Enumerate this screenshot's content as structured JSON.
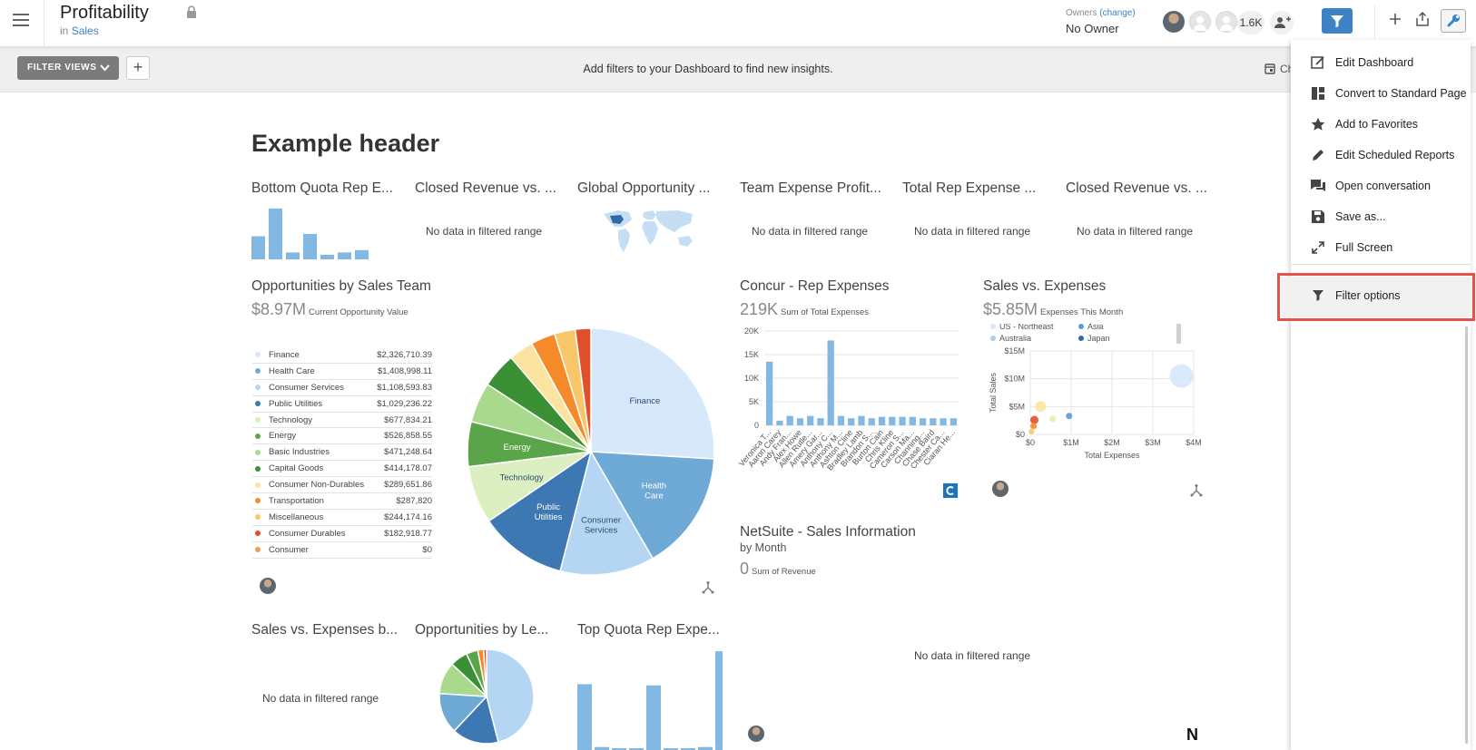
{
  "header": {
    "title": "Profitability",
    "subtitle_prefix": "in",
    "subtitle_link": "Sales",
    "owners_label": "Owners",
    "owners_change": "(change)",
    "owner_value": "No Owner",
    "follower_count": "1.6K"
  },
  "filterbar": {
    "filter_views_label": "FILTER VIEWS",
    "message": "Add filters to your Dashboard to find new insights.",
    "cal_label": "Ch"
  },
  "dashboard": {
    "header": "Example header",
    "row1": [
      {
        "title": "Bottom Quota Rep E...",
        "nodata": ""
      },
      {
        "title": "Closed Revenue vs. ...",
        "nodata": "No data in filtered range"
      },
      {
        "title": "Global Opportunity ...",
        "nodata": ""
      },
      {
        "title": "Team Expense Profit...",
        "nodata": "No data in filtered range"
      },
      {
        "title": "Total Rep Expense ...",
        "nodata": "No data in filtered range"
      },
      {
        "title": "Closed Revenue vs. ...",
        "nodata": "No data in filtered range"
      }
    ],
    "opportunities": {
      "title": "Opportunities by Sales Team",
      "value": "$8.97M",
      "value_label": "Current Opportunity Value"
    },
    "concur": {
      "title": "Concur - Rep Expenses",
      "value": "219K",
      "value_label": "Sum of Total Expenses"
    },
    "sales_expenses": {
      "title": "Sales vs. Expenses",
      "value": "$5.85M",
      "value_label": "Expenses This Month"
    },
    "netsuite": {
      "title": "NetSuite - Sales Information",
      "subtitle": "by Month",
      "value": "0",
      "value_label": "Sum of Revenue",
      "logo": "N"
    },
    "row3": [
      {
        "title": "Sales vs. Expenses b...",
        "nodata": "No data in filtered range"
      },
      {
        "title": "Opportunities by Le...",
        "nodata": ""
      },
      {
        "title": "Top Quota Rep Expe...",
        "nodata": ""
      },
      {
        "title": "",
        "nodata": "No data in filtered range"
      }
    ]
  },
  "chart_data": [
    {
      "type": "pie",
      "title": "Opportunities by Sales Team",
      "categories": [
        "Finance",
        "Health Care",
        "Consumer Services",
        "Public Utilities",
        "Technology",
        "Energy",
        "Basic Industries",
        "Capital Goods",
        "Consumer Non-Durables",
        "Transportation",
        "Miscellaneous",
        "Consumer Durables",
        "Consumer"
      ],
      "values": [
        2326710.39,
        1408998.11,
        1108593.83,
        1029236.22,
        677834.21,
        526858.55,
        471248.64,
        414178.07,
        289651.86,
        287820,
        244174.16,
        182918.77,
        0
      ],
      "value_labels": [
        "$2,326,710.39",
        "$1,408,998.11",
        "$1,108,593.83",
        "$1,029,236.22",
        "$677,834.21",
        "$526,858.55",
        "$471,248.64",
        "$414,178.07",
        "$289,651.86",
        "$287,820",
        "$244,174.16",
        "$182,918.77",
        "$0"
      ],
      "slice_labels": [
        "Finance",
        "Health Care",
        "Consumer Services",
        "Public Utilities",
        "Technology",
        "Energy",
        "",
        "",
        "",
        "",
        "",
        "",
        ""
      ],
      "colors": [
        "#d6e8fa",
        "#6fa9d6",
        "#b5d6f3",
        "#3d78b3",
        "#dcefc0",
        "#5aa54a",
        "#a9d98c",
        "#3b8f35",
        "#fbe3a0",
        "#f6892a",
        "#f8c76a",
        "#e0502a",
        "#f59a50"
      ]
    },
    {
      "type": "bar",
      "title": "Concur - Rep Expenses",
      "categories": [
        "Veronica T...",
        "Aaron Carey",
        "Andy Fran...",
        "Alex Howe",
        "Allen Rutle...",
        "Amery Gar...",
        "Anthony C...",
        "Anthony M...",
        "Ashton Cline",
        "Bradley Lamb",
        "Brandon S...",
        "Burton Cain",
        "Chris Kline",
        "Cameron S...",
        "Carson Ma...",
        "Channing...",
        "Chase Baird",
        "Chester Ca...",
        "Ciaran He..."
      ],
      "values": [
        13500,
        1000,
        2000,
        1500,
        2000,
        1500,
        18000,
        2000,
        1500,
        2000,
        1500,
        1800,
        1800,
        1800,
        1800,
        1500,
        1500,
        1500,
        1500
      ],
      "ylim": [
        0,
        20000
      ],
      "ytick_labels": [
        "0",
        "5K",
        "10K",
        "15K",
        "20K"
      ],
      "color": "#82b8e2"
    },
    {
      "type": "scatter",
      "title": "Sales vs. Expenses",
      "xlabel": "Total Expenses",
      "ylabel": "Total Sales",
      "xtick_labels": [
        "$0",
        "$1M",
        "$2M",
        "$3M",
        "$4M"
      ],
      "ytick_labels": [
        "$0",
        "$5M",
        "$10M",
        "$15M"
      ],
      "xlim": [
        0,
        4000000
      ],
      "ylim": [
        0,
        15000000
      ],
      "legend": [
        "US - Northeast",
        "Asia",
        "Australia",
        "Japan"
      ],
      "legend_colors": [
        "#d6e8fa",
        "#5b9bd1",
        "#a9cfee",
        "#2f6aa8"
      ],
      "points": [
        {
          "x": 3700000,
          "y": 10500000,
          "size": 26,
          "color": "#d6e8fa"
        },
        {
          "x": 250000,
          "y": 5000000,
          "size": 12,
          "color": "#fde59d"
        },
        {
          "x": 950000,
          "y": 3300000,
          "size": 7,
          "color": "#5b9bd1"
        },
        {
          "x": 550000,
          "y": 2800000,
          "size": 7,
          "color": "#e5efa6"
        },
        {
          "x": 100000,
          "y": 2600000,
          "size": 9,
          "color": "#e0502a"
        },
        {
          "x": 80000,
          "y": 1500000,
          "size": 7,
          "color": "#f6892a"
        },
        {
          "x": 30000,
          "y": 500000,
          "size": 6,
          "color": "#f8c76a"
        }
      ]
    },
    {
      "type": "bar",
      "title": "Bottom Quota Rep E...",
      "values": [
        10,
        22,
        3,
        11,
        2,
        3,
        4
      ],
      "color": "#82b8e2"
    },
    {
      "type": "pie",
      "title": "Opportunities by Le...",
      "values": [
        46,
        16,
        14,
        11,
        6,
        4,
        2,
        1
      ],
      "colors": [
        "#b5d6f3",
        "#3d78b3",
        "#6fa9d6",
        "#a9d98c",
        "#3b8f35",
        "#5aa54a",
        "#f6892a",
        "#e0502a"
      ]
    },
    {
      "type": "bar",
      "title": "Top Quota Rep Expe...",
      "values": [
        11,
        0.5,
        0.3,
        0.3,
        10.8,
        0.3,
        0.3,
        0.5,
        16.5,
        1
      ],
      "color": "#82b8e2"
    }
  ],
  "menu": {
    "items": [
      "Edit Dashboard",
      "Convert to Standard Page",
      "Add to Favorites",
      "Edit Scheduled Reports",
      "Open conversation",
      "Save as...",
      "Full Screen",
      "Filter options"
    ]
  }
}
